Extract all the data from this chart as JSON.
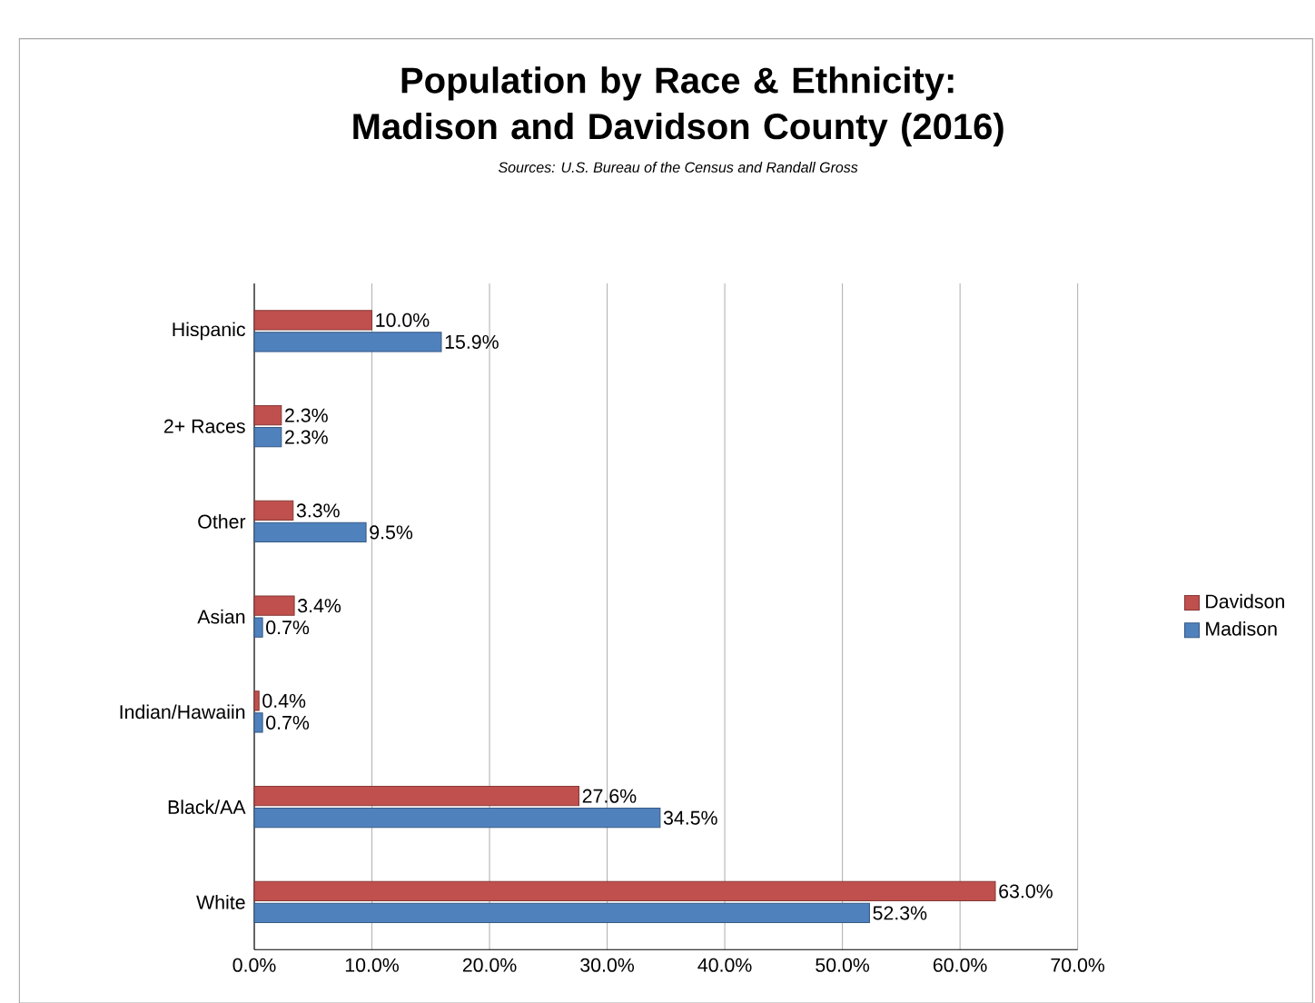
{
  "chart_data": {
    "type": "bar",
    "orientation": "horizontal",
    "title": "Population by Race & Ethnicity: Madison and Davidson County (2016)",
    "subtitle": "Sources: U.S. Bureau of the Census and Randall Gross",
    "categories": [
      "Hispanic",
      "2+ Races",
      "Other",
      "Asian",
      "Indian/Hawaiin",
      "Black/AA",
      "White"
    ],
    "series": [
      {
        "name": "Davidson",
        "color": "#c0504d",
        "values": [
          10.0,
          2.3,
          3.3,
          3.4,
          0.4,
          27.6,
          63.0
        ],
        "value_labels": [
          "10.0%",
          "2.3%",
          "3.3%",
          "3.4%",
          "0.4%",
          "27.6%",
          "63.0%"
        ]
      },
      {
        "name": "Madison",
        "color": "#4f81bd",
        "values": [
          15.9,
          2.3,
          9.5,
          0.7,
          0.7,
          34.5,
          52.3
        ],
        "value_labels": [
          "15.9%",
          "2.3%",
          "9.5%",
          "0.7%",
          "0.7%",
          "34.5%",
          "52.3%"
        ]
      }
    ],
    "xlim": [
      0,
      70
    ],
    "xticks": [
      {
        "value": 0,
        "label": "0.0%"
      },
      {
        "value": 10,
        "label": "10.0%"
      },
      {
        "value": 20,
        "label": "20.0%"
      },
      {
        "value": 30,
        "label": "30.0%"
      },
      {
        "value": 40,
        "label": "40.0%"
      },
      {
        "value": 50,
        "label": "50.0%"
      },
      {
        "value": 60,
        "label": "60.0%"
      },
      {
        "value": 70,
        "label": "70.0%"
      }
    ],
    "grid": "x",
    "legend": "right"
  }
}
